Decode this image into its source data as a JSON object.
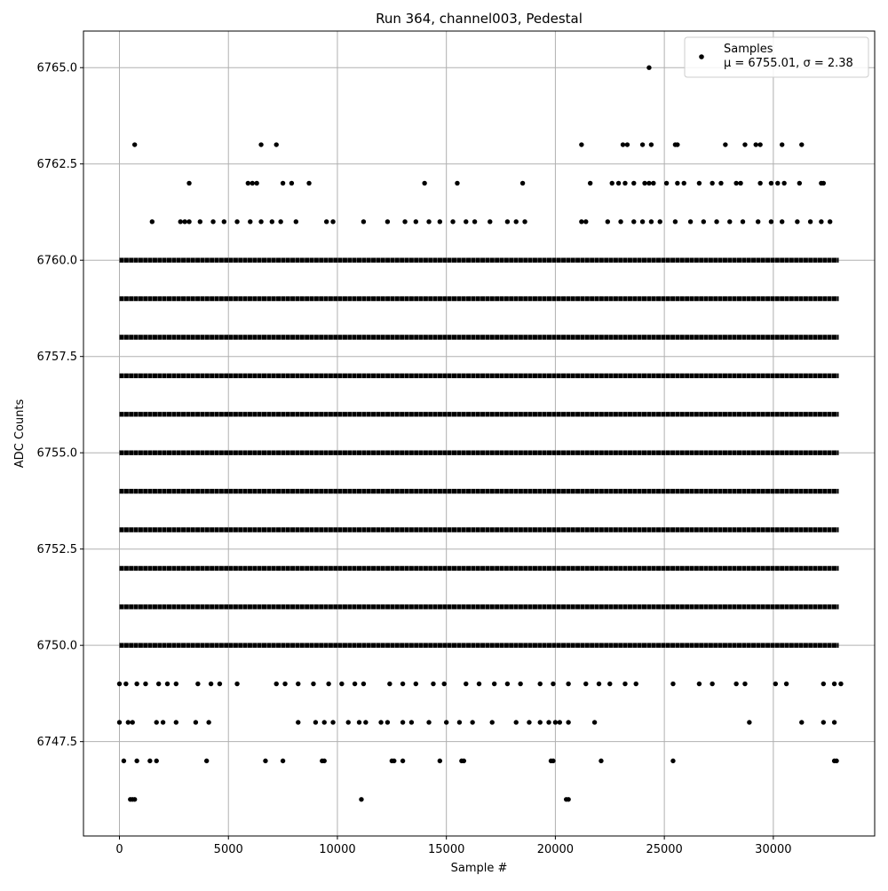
{
  "chart_data": {
    "type": "scatter",
    "title": "Run 364, channel003, Pedestal",
    "xlabel": "Sample #",
    "ylabel": "ADC Counts",
    "xlim": [
      -1650,
      34650
    ],
    "ylim": [
      6745.05,
      6765.95
    ],
    "x_ticks": [
      0,
      5000,
      10000,
      15000,
      20000,
      25000,
      30000
    ],
    "x_tick_labels": [
      "0",
      "5000",
      "10000",
      "15000",
      "20000",
      "25000",
      "30000"
    ],
    "y_ticks": [
      6747.5,
      6750.0,
      6752.5,
      6755.0,
      6757.5,
      6760.0,
      6762.5,
      6765.0
    ],
    "y_tick_labels": [
      "6747.5",
      "6750.0",
      "6752.5",
      "6755.0",
      "6757.5",
      "6760.0",
      "6762.5",
      "6765.0"
    ],
    "grid": true,
    "legend": {
      "placement": "top-right",
      "entries": [
        {
          "label": "Samples",
          "stat_line": "μ = 6755.01, σ = 2.38"
        }
      ]
    },
    "marker_color": "#000000",
    "sample_count": 33000,
    "series": [
      {
        "name": "Samples",
        "levels": [
          6746,
          6747,
          6748,
          6749,
          6750,
          6751,
          6752,
          6753,
          6754,
          6755,
          6756,
          6757,
          6758,
          6759,
          6760,
          6761,
          6762,
          6763,
          6765
        ],
        "dense_levels": [
          6750,
          6751,
          6752,
          6753,
          6754,
          6755,
          6756,
          6757,
          6758,
          6759,
          6760
        ],
        "sparse_points": [
          [
            6746,
            [
              500,
              600,
              700,
              11100,
              20500,
              20600
            ]
          ],
          [
            6747,
            [
              200,
              800,
              1400,
              1700,
              4000,
              6700,
              7500,
              9300,
              9400,
              12500,
              12600,
              13000,
              14700,
              15700,
              15800,
              19800,
              19900,
              22100,
              25400,
              32800,
              32900
            ]
          ],
          [
            6748,
            [
              0,
              400,
              600,
              1700,
              2000,
              2600,
              3500,
              4100,
              8200,
              9000,
              9400,
              9800,
              10500,
              11000,
              11300,
              12000,
              12300,
              13000,
              13400,
              14200,
              15000,
              15600,
              16200,
              17100,
              18200,
              18800,
              19300,
              19700,
              20000,
              20200,
              20600,
              21800,
              28900,
              31300,
              32300,
              32800
            ]
          ],
          [
            6749,
            [
              0,
              300,
              800,
              1200,
              1800,
              2200,
              2600,
              3600,
              4200,
              4600,
              5400,
              7200,
              7600,
              8200,
              8900,
              9600,
              10200,
              10800,
              11200,
              12400,
              13000,
              13600,
              14400,
              14900,
              15900,
              16500,
              17200,
              17800,
              18400,
              19300,
              19900,
              20600,
              21400,
              22000,
              22500,
              23200,
              23700,
              25400,
              26600,
              27200,
              28300,
              28700,
              30100,
              30600,
              32300,
              32800,
              33100
            ]
          ],
          [
            6761,
            [
              1500,
              2800,
              3000,
              3200,
              3700,
              4300,
              4800,
              5400,
              6000,
              6500,
              7000,
              7400,
              8100,
              9500,
              9800,
              11200,
              12300,
              13100,
              13600,
              14200,
              14700,
              15300,
              15900,
              16300,
              17000,
              17800,
              18200,
              18600,
              21200,
              21400,
              22400,
              23000,
              23600,
              24000,
              24400,
              24800,
              25500,
              26200,
              26800,
              27400,
              28000,
              28600,
              29300,
              29900,
              30400,
              31100,
              31700,
              32200,
              32600
            ]
          ],
          [
            6762,
            [
              3200,
              5900,
              6100,
              6300,
              7500,
              7900,
              8700,
              14000,
              15500,
              18500,
              21600,
              22600,
              22900,
              23200,
              23600,
              24100,
              24300,
              24500,
              25100,
              25600,
              25900,
              26600,
              27200,
              27600,
              28300,
              28500,
              29400,
              29900,
              30200,
              30500,
              31200,
              32200,
              32300
            ]
          ],
          [
            6763,
            [
              700,
              6500,
              7200,
              21200,
              23100,
              23300,
              24000,
              24400,
              25500,
              25600,
              27800,
              28700,
              29200,
              29400,
              30400,
              31300
            ]
          ],
          [
            6765,
            [
              24300
            ]
          ]
        ]
      }
    ]
  }
}
